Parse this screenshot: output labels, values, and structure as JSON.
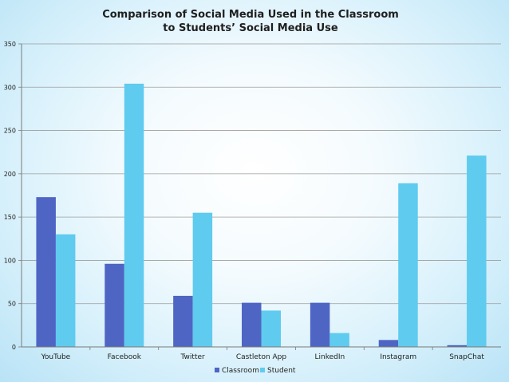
{
  "chart_data": {
    "type": "bar",
    "title_lines": [
      "Comparison of Social Media Used in the Classroom",
      "to Students’ Social Media Use"
    ],
    "xlabel": "",
    "ylabel": "",
    "ylim": [
      0,
      350
    ],
    "yticks": [
      0,
      50,
      100,
      150,
      200,
      250,
      300,
      350
    ],
    "grid": true,
    "legend_position": "bottom",
    "categories": [
      "YouTube",
      "Facebook",
      "Twitter",
      "Castleton App",
      "LinkedIn",
      "Instagram",
      "SnapChat"
    ],
    "series": [
      {
        "name": "Classroom",
        "color": "#4f65c4",
        "values": [
          173,
          96,
          59,
          51,
          51,
          8,
          2
        ]
      },
      {
        "name": "Student",
        "color": "#5fcbef",
        "values": [
          130,
          304,
          155,
          42,
          16,
          189,
          221
        ]
      }
    ]
  }
}
